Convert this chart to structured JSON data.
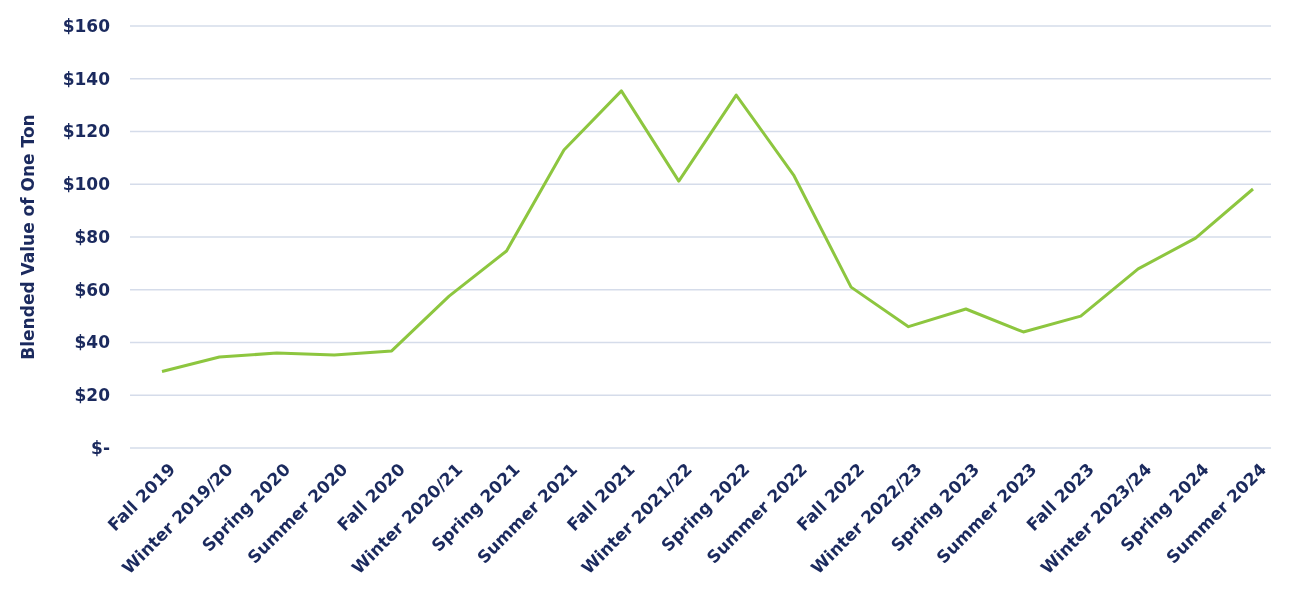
{
  "chart_data": {
    "type": "line",
    "ylabel": "Blended Value of One Ton",
    "categories": [
      "Fall 2019",
      "Winter 2019/20",
      "Spring 2020",
      "Summer 2020",
      "Fall 2020",
      "Winter 2020/21",
      "Spring 2021",
      "Summer 2021",
      "Fall 2021",
      "Winter 2021/22",
      "Spring 2022",
      "Summer 2022",
      "Fall 2022",
      "Winter 2022/23",
      "Spring 2023",
      "Summer 2023",
      "Fall 2023",
      "Winter 2023/24",
      "Spring 2024",
      "Summer 2024"
    ],
    "series": [
      {
        "color": "#8dc63f",
        "values": [
          29,
          34.5,
          36,
          35.3,
          36.8,
          57.6,
          74.7,
          113,
          135.4,
          101.2,
          133.8,
          103.5,
          61,
          46,
          52.7,
          44,
          50,
          67.9,
          79.6,
          98.2
        ]
      }
    ],
    "ylim": [
      0,
      160
    ],
    "yticks": [
      {
        "value": 0,
        "label": "$-"
      },
      {
        "value": 20,
        "label": "$20"
      },
      {
        "value": 40,
        "label": "$40"
      },
      {
        "value": 60,
        "label": "$60"
      },
      {
        "value": 80,
        "label": "$80"
      },
      {
        "value": 100,
        "label": "$100"
      },
      {
        "value": 120,
        "label": "$120"
      },
      {
        "value": 140,
        "label": "$140"
      },
      {
        "value": 160,
        "label": "$160"
      }
    ],
    "grid": "y",
    "marker": "none",
    "line_style": "solid"
  }
}
